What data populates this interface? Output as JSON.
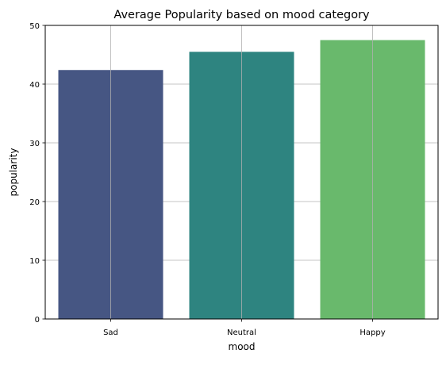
{
  "chart_data": {
    "type": "bar",
    "title": "Average Popularity based on mood category",
    "xlabel": "mood",
    "ylabel": "popularity",
    "categories": [
      "Sad",
      "Neutral",
      "Happy"
    ],
    "values": [
      42.4,
      45.5,
      47.5
    ],
    "bar_colors": [
      "#465683",
      "#2e8480",
      "#69b96c"
    ],
    "ylim": [
      0,
      50
    ],
    "yticks": [
      0,
      10,
      20,
      30,
      40,
      50
    ],
    "grid": true,
    "grid_color": "#b0b0b0"
  }
}
